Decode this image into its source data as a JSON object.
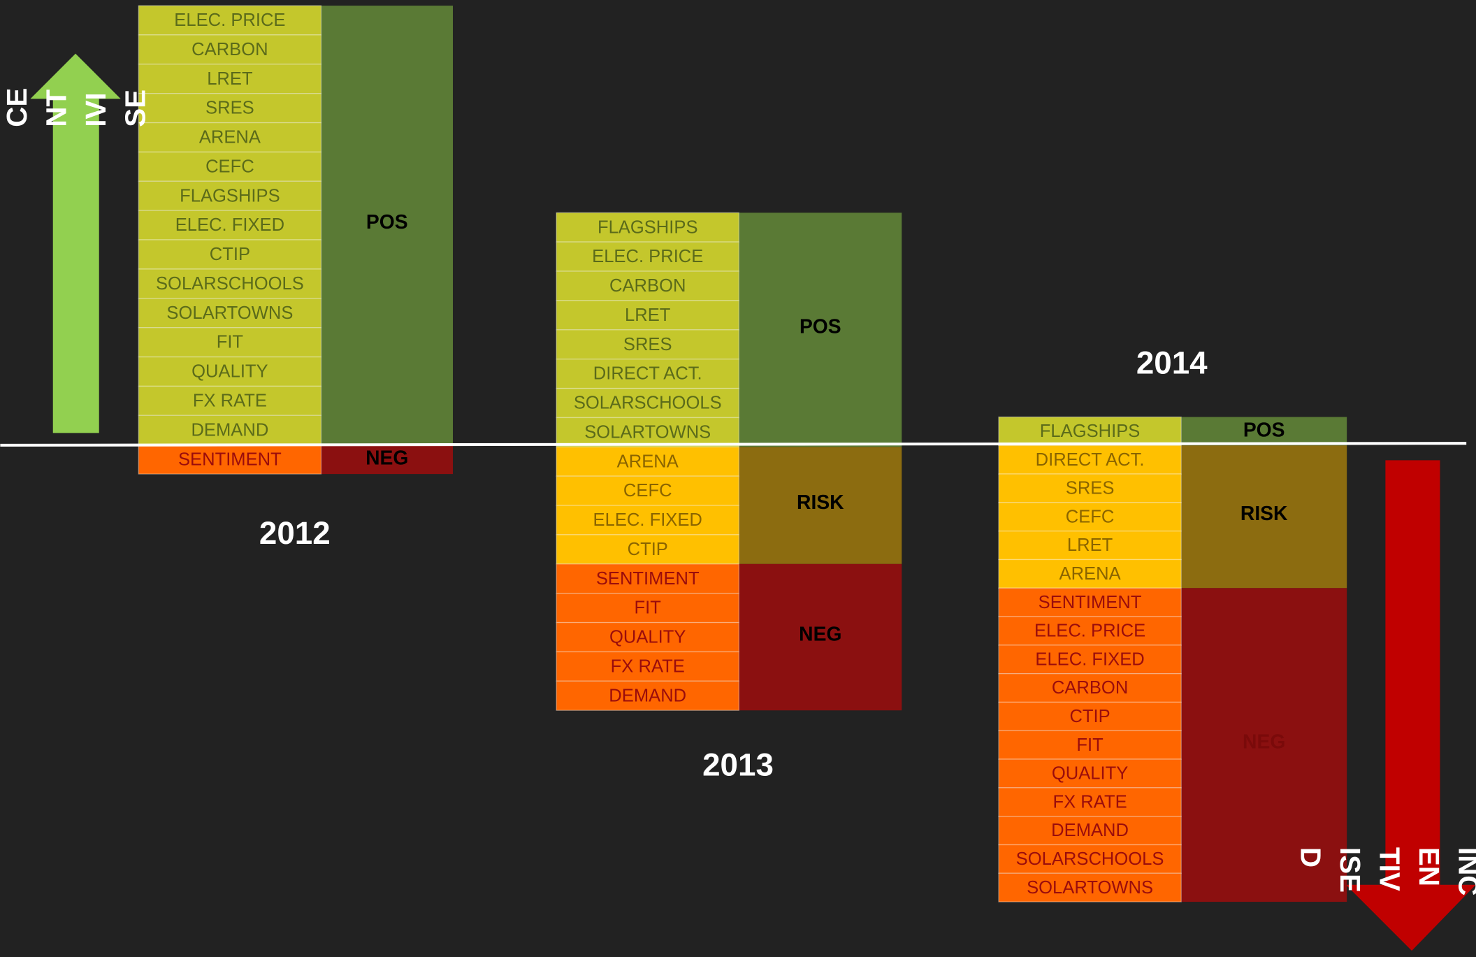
{
  "columns": [
    {
      "year": "2012",
      "groups": [
        {
          "label": "POS",
          "kind": "pos",
          "items": [
            "ELEC. PRICE",
            "CARBON",
            "LRET",
            "SRES",
            "ARENA",
            "CEFC",
            "FLAGSHIPS",
            "ELEC. FIXED",
            "CTIP",
            "SOLARSCHOOLS",
            "SOLARTOWNS",
            "FIT",
            "QUALITY",
            "FX RATE",
            "DEMAND"
          ]
        },
        {
          "label": "NEG",
          "kind": "neg",
          "items": [
            "SENTIMENT"
          ]
        }
      ]
    },
    {
      "year": "2013",
      "groups": [
        {
          "label": "POS",
          "kind": "pos",
          "items": [
            "FLAGSHIPS",
            "ELEC. PRICE",
            "CARBON",
            "LRET",
            "SRES",
            "DIRECT ACT.",
            "SOLARSCHOOLS",
            "SOLARTOWNS"
          ]
        },
        {
          "label": "RISK",
          "kind": "risk",
          "items": [
            "ARENA",
            "CEFC",
            "ELEC. FIXED",
            "CTIP"
          ]
        },
        {
          "label": "NEG",
          "kind": "neg",
          "items": [
            "SENTIMENT",
            "FIT",
            "QUALITY",
            "FX RATE",
            "DEMAND"
          ]
        }
      ]
    },
    {
      "year": "2014",
      "groups": [
        {
          "label": "POS",
          "kind": "pos",
          "items": [
            "FLAGSHIPS"
          ]
        },
        {
          "label": "RISK",
          "kind": "risk",
          "items": [
            "DIRECT ACT.",
            "SRES",
            "CEFC",
            "LRET",
            "ARENA"
          ]
        },
        {
          "label": "NEG",
          "kind": "neg",
          "items": [
            "SENTIMENT",
            "ELEC. PRICE",
            "ELEC. FIXED",
            "CARBON",
            "CTIP",
            "FIT",
            "QUALITY",
            "FX RATE",
            "DEMAND",
            "SOLARSCHOOLS",
            "SOLARTOWNS"
          ]
        }
      ]
    }
  ],
  "left_arrow": [
    "CE",
    "NT",
    "IVI",
    "SE"
  ],
  "right_arrow": [
    "INC",
    "EN",
    "TIV",
    "ISE",
    "D"
  ]
}
